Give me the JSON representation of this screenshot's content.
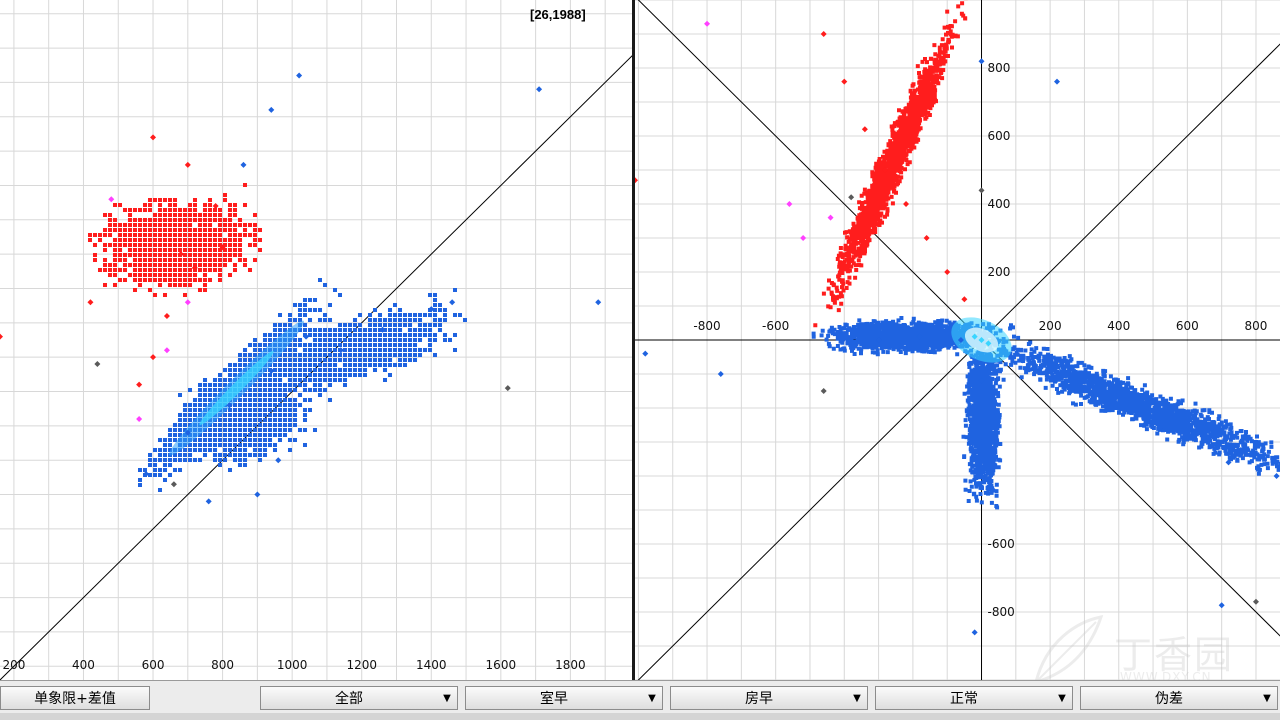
{
  "coordinate_readout": "[26,1988]",
  "colors": {
    "accent_blue": "#1f63e0",
    "core_cyan": "#39d5ff",
    "red_points": "#ff1d1d",
    "magenta_points": "#ff40ff",
    "gray_points": "#5a5a5a",
    "grid": "#d8d8d8"
  },
  "toolbar": {
    "mode_label": "单象限+差值",
    "dropdowns": [
      {
        "label": "全部"
      },
      {
        "label": "室早"
      },
      {
        "label": "房早"
      },
      {
        "label": "正常"
      },
      {
        "label": "伪差"
      }
    ]
  },
  "watermark": {
    "text": "丁香园",
    "url": "WWW.DXY.CN"
  },
  "chart_data": [
    {
      "type": "scatter",
      "title": "",
      "xlabel": "",
      "ylabel": "",
      "x_ticks": [
        "200",
        "400",
        "600",
        "800",
        "1000",
        "1200",
        "1400",
        "1600",
        "1800"
      ],
      "xlim": [
        160,
        1980
      ],
      "ylim": [
        160,
        2140
      ],
      "grid": true,
      "series": [
        {
          "color": "#1f63e0",
          "points": [
            [
              580,
              760
            ],
            [
              700,
              880
            ],
            [
              820,
              960
            ],
            [
              940,
              1060
            ],
            [
              1040,
              1160
            ],
            [
              1140,
              1120
            ],
            [
              1260,
              1180
            ],
            [
              1400,
              1240
            ],
            [
              1460,
              1260
            ],
            [
              900,
              700
            ],
            [
              960,
              800
            ],
            [
              760,
              680
            ],
            [
              1020,
              1920
            ],
            [
              940,
              1820
            ],
            [
              860,
              1660
            ],
            [
              1710,
              1880
            ],
            [
              1880,
              1260
            ]
          ]
        },
        {
          "color": "#ff1d1d",
          "points": [
            [
              600,
              1740
            ],
            [
              700,
              1660
            ],
            [
              780,
              1540
            ],
            [
              680,
              1400
            ],
            [
              640,
              1220
            ],
            [
              600,
              1100
            ],
            [
              560,
              1020
            ],
            [
              720,
              1360
            ],
            [
              800,
              1420
            ],
            [
              160,
              1160
            ],
            [
              420,
              1260
            ]
          ]
        },
        {
          "color": "#ff40ff",
          "points": [
            [
              480,
              1560
            ],
            [
              560,
              920
            ],
            [
              640,
              1120
            ],
            [
              700,
              1260
            ]
          ]
        },
        {
          "color": "#5a5a5a",
          "points": [
            [
              440,
              1080
            ],
            [
              1620,
              1010
            ],
            [
              660,
              730
            ]
          ]
        }
      ]
    },
    {
      "type": "scatter",
      "title": "",
      "xlabel": "",
      "ylabel": "",
      "x_ticks": [
        "-800",
        "-600",
        "200",
        "400",
        "600",
        "800"
      ],
      "y_ticks": [
        "800",
        "600",
        "400",
        "200",
        "-600",
        "-800"
      ],
      "xlim": [
        -1010,
        870
      ],
      "ylim": [
        -1000,
        1000
      ],
      "grid": true,
      "series": [
        {
          "color": "#1f63e0",
          "points": [
            [
              -420,
              20
            ],
            [
              -300,
              0
            ],
            [
              -180,
              10
            ],
            [
              -60,
              0
            ],
            [
              0,
              -120
            ],
            [
              0,
              -300
            ],
            [
              20,
              -440
            ],
            [
              120,
              -60
            ],
            [
              320,
              -160
            ],
            [
              520,
              -260
            ],
            [
              720,
              -360
            ],
            [
              860,
              -400
            ],
            [
              0,
              820
            ],
            [
              220,
              760
            ],
            [
              -760,
              -100
            ],
            [
              -980,
              -40
            ],
            [
              -20,
              -860
            ],
            [
              700,
              -780
            ]
          ]
        },
        {
          "color": "#ff1d1d",
          "points": [
            [
              -460,
              900
            ],
            [
              -400,
              760
            ],
            [
              -340,
              620
            ],
            [
              -280,
              500
            ],
            [
              -220,
              400
            ],
            [
              -160,
              300
            ],
            [
              -100,
              200
            ],
            [
              -50,
              120
            ],
            [
              -1010,
              470
            ]
          ]
        },
        {
          "color": "#ff40ff",
          "points": [
            [
              -800,
              930
            ],
            [
              -560,
              400
            ],
            [
              -520,
              300
            ],
            [
              -440,
              360
            ]
          ]
        },
        {
          "color": "#5a5a5a",
          "points": [
            [
              -380,
              420
            ],
            [
              0,
              440
            ],
            [
              800,
              -770
            ],
            [
              -460,
              -150
            ]
          ]
        },
        {
          "color": "#39d5ff",
          "points": [
            [
              0,
              0
            ],
            [
              -20,
              10
            ],
            [
              20,
              -10
            ]
          ]
        }
      ]
    }
  ]
}
